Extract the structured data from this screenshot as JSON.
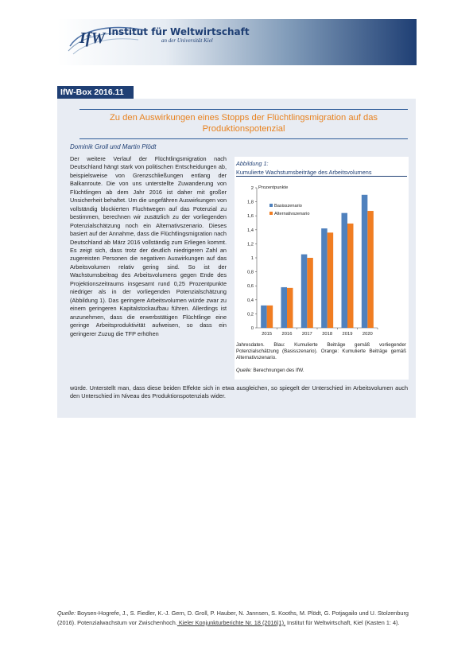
{
  "header": {
    "logo_text": "IfW",
    "institute_name": "Institut für Weltwirtschaft",
    "institute_sub": "an der Universität Kiel"
  },
  "box": {
    "label": "IfW-Box 2016.11",
    "title_line1": "Zu den Auswirkungen eines Stopps der Flüchtlingsmigration auf das",
    "title_line2": "Produktionspotenzial",
    "authors": "Dominik Groll und Martin Plödt",
    "body": "Der weitere Verlauf der Flüchtlingsmigration nach Deutschland hängt stark von politischen Entscheidungen ab, beispielsweise von Grenzschließungen entlang der Balkanroute. Die von uns unterstellte Zuwanderung von Flüchtlingen ab dem Jahr 2016 ist daher mit großer Unsicherheit behaftet. Um die ungefähren Auswirkungen von vollständig blockierten Fluchtwegen auf das Potenzial zu bestimmen, berechnen wir zusätzlich zu der vorliegenden Potenzialschätzung noch ein Alternativszenario. Dieses basiert auf der Annahme, dass die Flüchtlingsmigration nach Deutschland ab März 2016 vollständig zum Erliegen kommt. Es zeigt sich, dass trotz der deutlich niedrigeren Zahl an zugereisten Personen die negativen Auswirkungen auf das Arbeitsvolumen relativ gering sind. So ist der Wachstumsbeitrag des Arbeitsvolumens gegen Ende des Projektionszeitraums insgesamt rund 0,25 Prozentpunkte niedriger als in der vorliegenden Potenzialschätzung (Abbildung 1). Das geringere Arbeitsvolumen würde zwar zu einem geringeren Kapitalstockaufbau führen. Allerdings ist anzunehmen, dass die erwerbstätigen Flüchtlinge eine geringe Arbeitsproduktivität aufweisen, so dass ein geringerer Zuzug die TFP erhöhen",
    "body_cont": "würde. Unterstellt man, dass diese beiden Effekte sich in etwa ausgleichen, so spiegelt der Unterschied im Arbeitsvolumen auch den Unterschied im Niveau des Produktionspotenzials wider."
  },
  "figure": {
    "label": "Abbildung 1:",
    "title": "Kumulierte Wachstumsbeiträge des Arbeitsvolumens",
    "note": "Jahresdaten. Blau: Kumulierte Beiträge gemäß vorliegender Potenzialschätzung (Basisszenario). Orange: Kumulierte Beiträge gemäß Alternativszenario.",
    "source_label": "Quelle:",
    "source_text": " Berechnungen des IfW."
  },
  "chart_data": {
    "type": "bar",
    "ylabel": "Prozentpunkte",
    "categories": [
      "2015",
      "2016",
      "2017",
      "2018",
      "2019",
      "2020"
    ],
    "series": [
      {
        "name": "Basisszenario",
        "color": "#4f81bd",
        "values": [
          0.32,
          0.58,
          1.05,
          1.42,
          1.64,
          1.9
        ]
      },
      {
        "name": "Alternativszenario",
        "color": "#f07d22",
        "values": [
          0.32,
          0.57,
          1.0,
          1.36,
          1.49,
          1.67
        ]
      }
    ],
    "ylim": [
      0,
      2
    ],
    "yticks": [
      "0",
      "0,2",
      "0,4",
      "0,6",
      "0,8",
      "1",
      "1,2",
      "1,4",
      "1,6",
      "1,8",
      "2"
    ],
    "grid": false,
    "legend": "top-left"
  },
  "footer": {
    "source_label": "Quelle:",
    "text1": " Boysen-Hogrefe, J., S. Fiedler, K.-J. Gern, D. Groll, P. Hauber, N. Jannsen, S. Kooths, M. Plödt, G. Potjagailo und U. Stolzenburg (2016). Potenzialwachstum vor Zwischenhoch.",
    "link": " Kieler Konjunkturberichte Nr. 18 (2016|1).",
    "text2": " Institut für Weltwirtschaft, Kiel (Kasten 1: 4)."
  }
}
